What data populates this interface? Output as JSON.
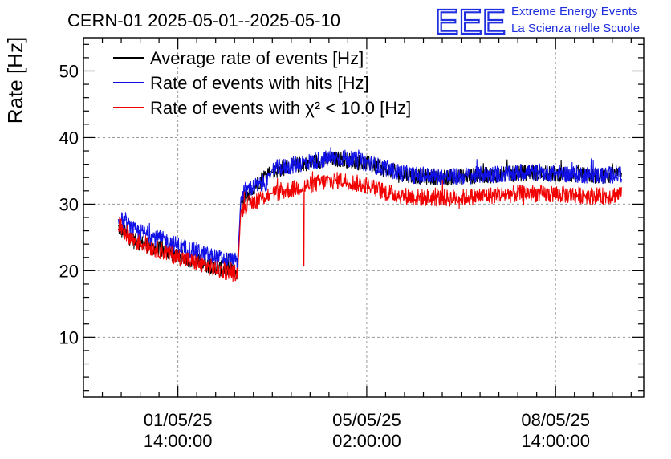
{
  "header": {
    "title": "CERN-01 2025-05-01--2025-05-10"
  },
  "logo": {
    "mark": "EEE",
    "line1": "Extreme Energy Events",
    "line2": "La Scienza nelle Scuole",
    "color": "#1f2fe0"
  },
  "chart_data": {
    "type": "line",
    "title": "CERN-01 2025-05-01--2025-05-10",
    "xlabel": "",
    "ylabel": "Rate [Hz]",
    "ylim": [
      1,
      55
    ],
    "xlim_hours": [
      -16,
      162
    ],
    "grid": true,
    "legend_position": "top-left",
    "y_ticks": [
      10,
      20,
      30,
      40,
      50
    ],
    "y_tick_labels": [
      "10",
      "20",
      "30",
      "40",
      "50"
    ],
    "x_ticks": [
      {
        "hours": 14,
        "date": "01/05/25",
        "time": "14:00:00"
      },
      {
        "hours": 74,
        "date": "05/05/25",
        "time": "02:00:00"
      },
      {
        "hours": 134,
        "date": "08/05/25",
        "time": "14:00:00"
      }
    ],
    "series": [
      {
        "name": "Average rate of events [Hz]",
        "color": "#000000",
        "x": [
          -5,
          0,
          5,
          10,
          15,
          20,
          25,
          30,
          33,
          34,
          35,
          43,
          44,
          48,
          55,
          60,
          66,
          70,
          75,
          80,
          85,
          90,
          100,
          110,
          120,
          125,
          130,
          140,
          150,
          155
        ],
        "y": [
          26.5,
          24.5,
          23.8,
          23.0,
          22.1,
          21.4,
          20.6,
          20.1,
          19.8,
          30.2,
          31.0,
          35.0,
          34.8,
          35.5,
          36.2,
          36.6,
          36.8,
          36.4,
          36.0,
          35.2,
          34.6,
          34.2,
          34.0,
          34.3,
          34.5,
          34.8,
          34.6,
          34.4,
          34.2,
          34.5
        ]
      },
      {
        "name": "Rate of events with hits [Hz]",
        "color": "#1010e6",
        "x": [
          -5,
          0,
          5,
          10,
          15,
          20,
          25,
          30,
          33,
          34,
          35,
          43,
          44,
          48,
          55,
          60,
          66,
          70,
          75,
          80,
          85,
          90,
          100,
          110,
          120,
          125,
          130,
          140,
          150,
          155
        ],
        "y": [
          28.0,
          26.0,
          25.3,
          24.5,
          23.6,
          22.9,
          22.1,
          21.6,
          21.3,
          31.0,
          32.0,
          33.5,
          35.3,
          35.6,
          36.3,
          36.7,
          37.0,
          36.6,
          36.1,
          35.3,
          34.7,
          34.3,
          34.1,
          34.4,
          34.6,
          34.9,
          34.7,
          34.5,
          34.3,
          34.6
        ]
      },
      {
        "name": "Rate of events with χ² < 10.0 [Hz]",
        "color": "#f20000",
        "x": [
          -5,
          0,
          5,
          10,
          15,
          20,
          25,
          30,
          33,
          34,
          35,
          43,
          44,
          48,
          55,
          60,
          66,
          70,
          75,
          80,
          85,
          90,
          100,
          110,
          120,
          125,
          130,
          140,
          150,
          155
        ],
        "y": [
          27.0,
          24.5,
          23.6,
          22.8,
          21.9,
          21.2,
          20.4,
          19.8,
          19.5,
          29.0,
          29.6,
          31.5,
          31.6,
          32.0,
          32.8,
          33.3,
          33.6,
          33.2,
          32.7,
          31.8,
          31.3,
          31.0,
          30.9,
          31.2,
          31.5,
          31.7,
          31.5,
          31.4,
          31.2,
          31.6
        ]
      }
    ],
    "annotations": [
      {
        "series": "Rate of events with χ² < 10.0 [Hz]",
        "x_hours": 54,
        "y_min": 20.7,
        "note": "dip"
      }
    ]
  }
}
